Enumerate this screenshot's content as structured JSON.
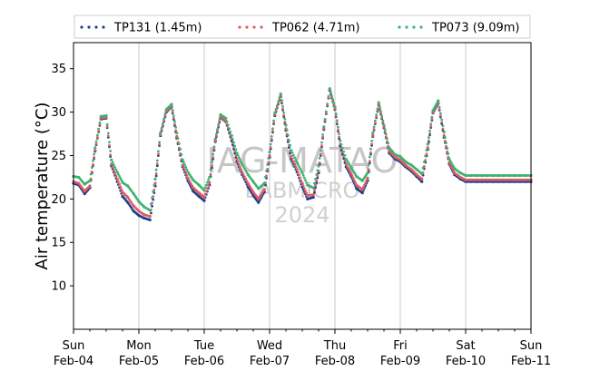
{
  "chart_data": {
    "type": "scatter",
    "title": "",
    "xlabel": "",
    "ylabel": "Air temperature (°C)",
    "ylim": [
      5,
      38
    ],
    "xlim_days": [
      0,
      7
    ],
    "yticks": [
      10,
      15,
      20,
      25,
      30,
      35
    ],
    "xticks": [
      {
        "day": "Sun",
        "date": "Feb-04"
      },
      {
        "day": "Mon",
        "date": "Feb-05"
      },
      {
        "day": "Tue",
        "date": "Feb-06"
      },
      {
        "day": "Wed",
        "date": "Feb-07"
      },
      {
        "day": "Thu",
        "date": "Feb-08"
      },
      {
        "day": "Fri",
        "date": "Feb-09"
      },
      {
        "day": "Sat",
        "date": "Feb-10"
      },
      {
        "day": "Sun",
        "date": "Feb-11"
      }
    ],
    "grid": "vertical-major",
    "legend_position": "top-outside",
    "watermark": {
      "line1": "IAG-MATAO",
      "line2": "LABMICRO",
      "line3": "2024"
    },
    "x_unit": "days since Feb-04 00:00",
    "series": [
      {
        "name": "TP131 (1.45m)",
        "color": "#1f3f8f",
        "x": [
          0.0,
          0.08,
          0.17,
          0.25,
          0.33,
          0.42,
          0.5,
          0.58,
          0.67,
          0.75,
          0.83,
          0.92,
          1.0,
          1.08,
          1.17,
          1.25,
          1.33,
          1.42,
          1.5,
          1.58,
          1.67,
          1.75,
          1.83,
          1.92,
          2.0,
          2.08,
          2.17,
          2.25,
          2.33,
          2.42,
          2.5,
          2.58,
          2.67,
          2.75,
          2.83,
          2.92,
          3.0,
          3.08,
          3.17,
          3.25,
          3.33,
          3.42,
          3.5,
          3.58,
          3.67,
          3.75,
          3.83,
          3.92,
          4.0,
          4.08,
          4.17,
          4.25,
          4.33,
          4.42,
          4.5,
          4.58,
          4.67,
          4.75,
          4.83,
          4.92,
          5.0,
          5.08,
          5.17,
          5.25,
          5.33,
          5.42,
          5.5,
          5.58,
          5.67,
          5.75,
          5.83,
          5.92,
          6.0,
          6.08,
          6.17,
          6.25,
          6.33,
          6.42,
          6.5,
          6.58,
          6.67,
          6.75,
          6.83,
          6.92,
          7.0
        ],
        "y": [
          21.8,
          21.6,
          20.6,
          21.3,
          25.5,
          29.2,
          29.3,
          23.8,
          22.0,
          20.3,
          19.6,
          18.6,
          18.1,
          17.8,
          17.6,
          21.5,
          27.3,
          30.0,
          30.6,
          27.0,
          23.7,
          22.1,
          20.9,
          20.3,
          19.8,
          21.6,
          26.6,
          29.4,
          28.9,
          26.7,
          24.3,
          22.8,
          21.4,
          20.4,
          19.6,
          20.8,
          24.8,
          29.6,
          31.8,
          27.9,
          24.6,
          23.1,
          21.4,
          20.0,
          20.2,
          23.0,
          28.0,
          32.5,
          30.3,
          26.1,
          23.7,
          22.6,
          21.2,
          20.7,
          22.1,
          27.2,
          30.8,
          28.2,
          25.3,
          24.6,
          24.3,
          23.7,
          23.2,
          22.6,
          22.0,
          25.7,
          29.9,
          31.0,
          27.1,
          24.0,
          22.8,
          22.3,
          22.0,
          22.0,
          22.0,
          22.0,
          22.0,
          22.0,
          22.0,
          22.0,
          22.0,
          22.0,
          22.0,
          22.0,
          22.0
        ]
      },
      {
        "name": "TP062 (4.71m)",
        "color": "#e15a5f",
        "x": [
          0.0,
          0.08,
          0.17,
          0.25,
          0.33,
          0.42,
          0.5,
          0.58,
          0.67,
          0.75,
          0.83,
          0.92,
          1.0,
          1.08,
          1.17,
          1.25,
          1.33,
          1.42,
          1.5,
          1.58,
          1.67,
          1.75,
          1.83,
          1.92,
          2.0,
          2.08,
          2.17,
          2.25,
          2.33,
          2.42,
          2.5,
          2.58,
          2.67,
          2.75,
          2.83,
          2.92,
          3.0,
          3.08,
          3.17,
          3.25,
          3.33,
          3.42,
          3.5,
          3.58,
          3.67,
          3.75,
          3.83,
          3.92,
          4.0,
          4.08,
          4.17,
          4.25,
          4.33,
          4.42,
          4.5,
          4.58,
          4.67,
          4.75,
          4.83,
          4.92,
          5.0,
          5.08,
          5.17,
          5.25,
          5.33,
          5.42,
          5.5,
          5.58,
          5.67,
          5.75,
          5.83,
          5.92,
          6.0,
          6.08,
          6.17,
          6.25,
          6.33,
          6.42,
          6.5,
          6.58,
          6.67,
          6.75,
          6.83,
          6.92,
          7.0
        ],
        "y": [
          22.0,
          21.8,
          20.9,
          21.5,
          25.6,
          29.3,
          29.4,
          24.0,
          22.3,
          20.8,
          20.2,
          19.2,
          18.6,
          18.2,
          18.0,
          21.8,
          27.4,
          30.1,
          30.7,
          27.2,
          23.9,
          22.4,
          21.3,
          20.7,
          20.2,
          21.9,
          26.7,
          29.5,
          29.0,
          26.9,
          24.6,
          23.1,
          21.8,
          20.8,
          20.0,
          21.1,
          25.0,
          29.7,
          31.9,
          28.1,
          24.9,
          23.4,
          21.8,
          20.4,
          20.5,
          23.2,
          28.1,
          32.6,
          30.4,
          26.3,
          24.0,
          22.9,
          21.6,
          21.1,
          22.4,
          27.3,
          30.9,
          28.3,
          25.5,
          24.8,
          24.5,
          23.9,
          23.4,
          22.8,
          22.3,
          25.9,
          30.0,
          31.1,
          27.3,
          24.2,
          23.0,
          22.5,
          22.2,
          22.2,
          22.2,
          22.2,
          22.2,
          22.2,
          22.2,
          22.2,
          22.2,
          22.2,
          22.2,
          22.2,
          22.2
        ]
      },
      {
        "name": "TP073 (9.09m)",
        "color": "#3cb371",
        "x": [
          0.0,
          0.08,
          0.17,
          0.25,
          0.33,
          0.42,
          0.5,
          0.58,
          0.67,
          0.75,
          0.83,
          0.92,
          1.0,
          1.08,
          1.17,
          1.25,
          1.33,
          1.42,
          1.5,
          1.58,
          1.67,
          1.75,
          1.83,
          1.92,
          2.0,
          2.08,
          2.17,
          2.25,
          2.33,
          2.42,
          2.5,
          2.58,
          2.67,
          2.75,
          2.83,
          2.92,
          3.0,
          3.08,
          3.17,
          3.25,
          3.33,
          3.42,
          3.5,
          3.58,
          3.67,
          3.75,
          3.83,
          3.92,
          4.0,
          4.08,
          4.17,
          4.25,
          4.33,
          4.42,
          4.5,
          4.58,
          4.67,
          4.75,
          4.83,
          4.92,
          5.0,
          5.08,
          5.17,
          5.25,
          5.33,
          5.42,
          5.5,
          5.58,
          5.67,
          5.75,
          5.83,
          5.92,
          6.0,
          6.08,
          6.17,
          6.25,
          6.33,
          6.42,
          6.5,
          6.58,
          6.67,
          6.75,
          6.83,
          6.92,
          7.0
        ],
        "y": [
          22.6,
          22.5,
          21.7,
          22.1,
          25.9,
          29.5,
          29.6,
          24.5,
          23.1,
          21.9,
          21.5,
          20.6,
          19.7,
          19.1,
          18.7,
          22.3,
          27.6,
          30.3,
          30.9,
          27.6,
          24.5,
          23.1,
          22.2,
          21.6,
          21.0,
          22.5,
          26.9,
          29.7,
          29.3,
          27.3,
          25.3,
          24.0,
          22.8,
          22.0,
          21.2,
          21.8,
          25.4,
          29.9,
          32.1,
          28.5,
          25.6,
          24.2,
          23.0,
          21.6,
          21.3,
          23.8,
          28.3,
          32.7,
          30.6,
          26.7,
          24.6,
          23.6,
          22.6,
          22.1,
          23.0,
          27.6,
          31.1,
          28.5,
          25.9,
          25.1,
          24.9,
          24.3,
          23.9,
          23.4,
          22.9,
          26.3,
          30.2,
          31.3,
          27.7,
          24.6,
          23.5,
          23.0,
          22.7,
          22.7,
          22.7,
          22.7,
          22.7,
          22.7,
          22.7,
          22.7,
          22.7,
          22.7,
          22.7,
          22.7,
          22.7
        ]
      }
    ]
  }
}
